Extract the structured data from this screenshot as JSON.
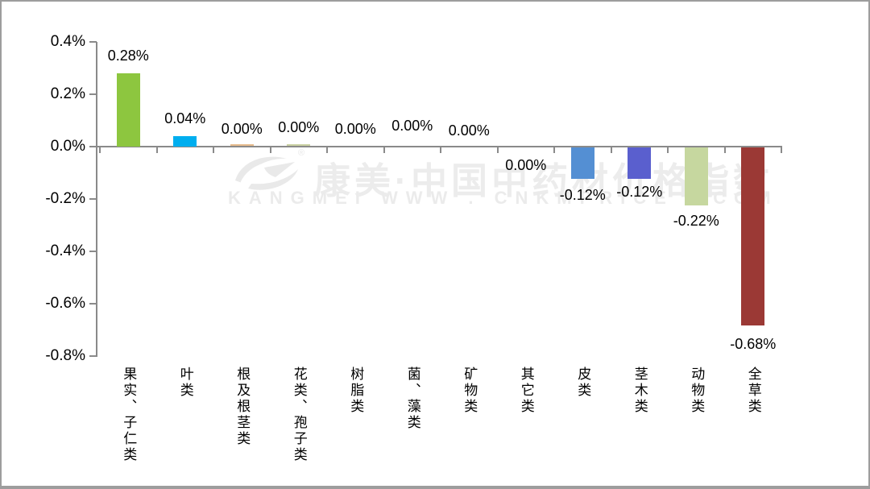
{
  "watermark": {
    "registered_mark": "®",
    "line1": "康美·中国中药材价格指数",
    "line2": "KANGMEI WWW . CNKMPRICE . COM"
  },
  "colors": {
    "axis": "#8A8A8A",
    "frame_border": "#9D9D9D",
    "watermark_text": "#ECECEC",
    "label_text": "#000000"
  },
  "chart_data": {
    "type": "bar",
    "title": "",
    "xlabel": "",
    "ylabel": "",
    "unit": "percent",
    "ylim": [
      -0.8,
      0.4
    ],
    "ytick_labels": [
      "0.4%",
      "0.2%",
      "0.0%",
      "-0.2%",
      "-0.4%",
      "-0.6%",
      "-0.8%"
    ],
    "grid": false,
    "legend": false,
    "categories": [
      "果实、子仁类",
      "叶类",
      "根及根茎类",
      "花类、孢子类",
      "树脂类",
      "菌、藻类",
      "矿物类",
      "其它类",
      "皮类",
      "茎木类",
      "动物类",
      "全草类"
    ],
    "values": [
      0.28,
      0.04,
      0,
      0,
      0,
      0,
      0,
      0,
      -0.12,
      -0.12,
      -0.22,
      -0.68
    ],
    "value_labels": [
      "0.28%",
      "0.04%",
      "0.00%",
      "0.00%",
      "0.00%",
      "0.00%",
      "0.00%",
      "0.00%",
      "-0.12%",
      "-0.12%",
      "-0.22%",
      "-0.68%"
    ],
    "label_positions": [
      "above",
      "above",
      "above",
      "above",
      "above",
      "above",
      "above",
      "below",
      "below",
      "below",
      "below",
      "below"
    ],
    "bar_colors": [
      "#8DC63F",
      "#00AEEF",
      "#E8BC8E",
      "#CBD2A4",
      null,
      null,
      null,
      null,
      "#548FD3",
      "#5A5FCE",
      "#C6D79F",
      "#9B3935"
    ],
    "trace_bar_indices": [
      2,
      3
    ]
  }
}
